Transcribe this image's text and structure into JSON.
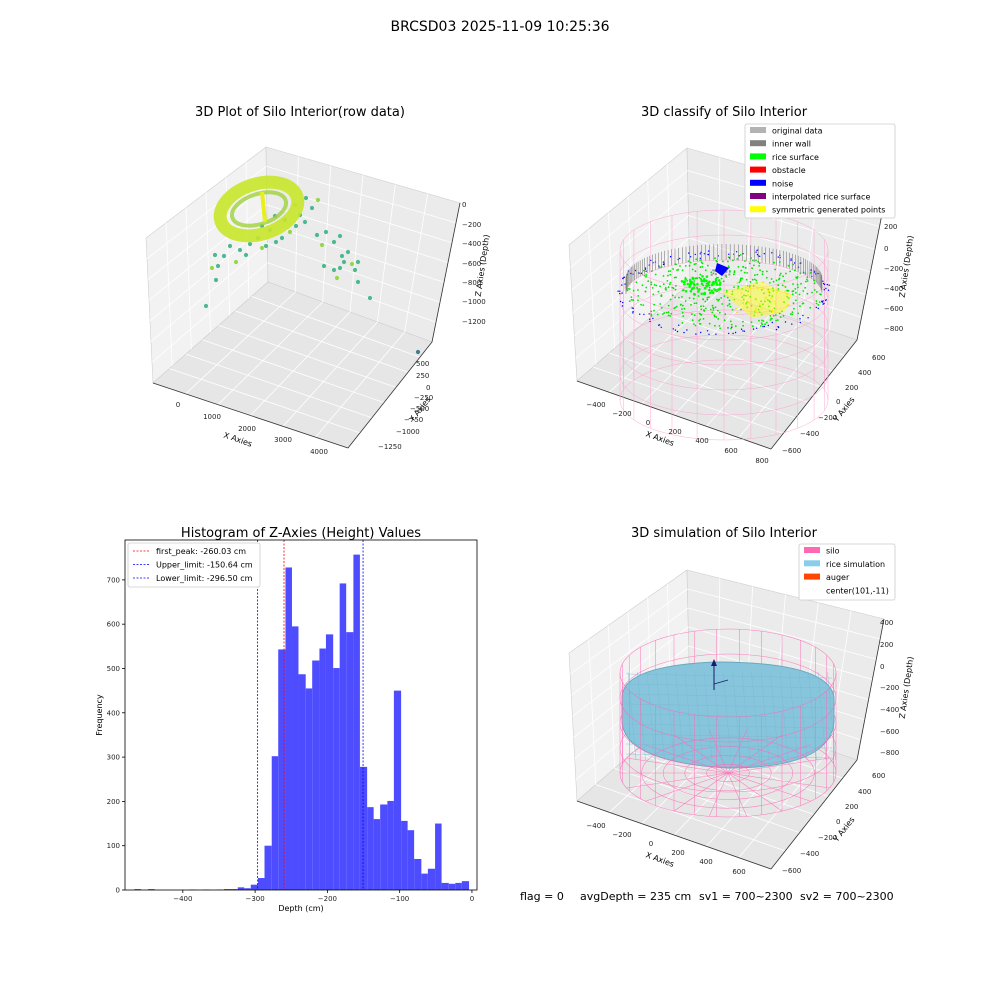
{
  "suptitle": "BRCSD03 2025-11-09 10:25:36",
  "footer": {
    "flag": "flag = 0",
    "avg_depth": "avgDepth = 235 cm",
    "sv1": "sv1 = 700~2300",
    "sv2": "sv2 = 700~2300"
  },
  "chart_data": [
    {
      "type": "scatter",
      "title": "3D Plot of Silo Interior(row data)",
      "xlabel": "X Axies",
      "ylabel": "Y Axies",
      "zlabel": "Z Axies (Depth)",
      "x_ticks": [
        "0",
        "1000",
        "2000",
        "3000",
        "4000"
      ],
      "y_ticks": [
        "500",
        "250",
        "0",
        "−250",
        "−500",
        "−750",
        "−1000",
        "−1250"
      ],
      "z_ticks": [
        "0",
        "−200",
        "−400",
        "−600",
        "−800",
        "−1000",
        "−1200"
      ],
      "colors": {
        "surface": "#b5e61d",
        "scatter": "#4cb98f",
        "outlier": "#3e7f8a"
      }
    },
    {
      "type": "scatter",
      "title": "3D classify of Silo Interior",
      "xlabel": "X Axies",
      "ylabel": "Y Axies",
      "zlabel": "Z Axies (Depth)",
      "x_ticks": [
        "−400",
        "−200",
        "0",
        "200",
        "400",
        "600",
        "800"
      ],
      "y_ticks": [
        "600",
        "400",
        "200",
        "0",
        "−200",
        "−400",
        "−600"
      ],
      "z_ticks": [
        "200",
        "0",
        "−200",
        "−400",
        "−600",
        "−800"
      ],
      "legend": [
        {
          "label": "original data",
          "color": "#b3b3b3"
        },
        {
          "label": "inner wall",
          "color": "#808080"
        },
        {
          "label": "rice surface",
          "color": "#00ff00"
        },
        {
          "label": "obstacle",
          "color": "#ff0000"
        },
        {
          "label": "noise",
          "color": "#0000ff"
        },
        {
          "label": "interpolated rice surface",
          "color": "#800080"
        },
        {
          "label": "symmetric generated points",
          "color": "#ffff00"
        }
      ],
      "legend_position": "top-right"
    },
    {
      "type": "bar",
      "title": "Histogram of Z-Axies (Height) Values",
      "xlabel": "Depth (cm)",
      "ylabel": "Frequency",
      "bar_color": "#4d4dff",
      "xlim": [
        -480,
        7
      ],
      "ylim": [
        0,
        790
      ],
      "x_ticks": [
        -400,
        -300,
        -200,
        -100,
        0
      ],
      "y_ticks": [
        0,
        100,
        200,
        300,
        400,
        500,
        600,
        700
      ],
      "bins": [
        [
          -467,
          -458,
          2
        ],
        [
          -448,
          -439,
          2
        ],
        [
          -391,
          -382,
          1
        ],
        [
          -372,
          -363,
          1
        ],
        [
          -353,
          -344,
          1
        ],
        [
          -343,
          -334,
          2
        ],
        [
          -334,
          -324,
          2
        ],
        [
          -324,
          -315,
          6
        ],
        [
          -315,
          -306,
          4
        ],
        [
          -306,
          -296,
          12
        ],
        [
          -296,
          -287,
          27
        ],
        [
          -287,
          -277,
          100
        ],
        [
          -277,
          -268,
          302
        ],
        [
          -268,
          -258,
          543
        ],
        [
          -258,
          -249,
          728
        ],
        [
          -249,
          -240,
          595
        ],
        [
          -240,
          -230,
          487
        ],
        [
          -230,
          -221,
          455
        ],
        [
          -221,
          -211,
          518
        ],
        [
          -211,
          -202,
          545
        ],
        [
          -202,
          -192,
          577
        ],
        [
          -192,
          -183,
          501
        ],
        [
          -183,
          -174,
          692
        ],
        [
          -174,
          -164,
          582
        ],
        [
          -164,
          -155,
          757
        ],
        [
          -155,
          -145,
          278
        ],
        [
          -145,
          -136,
          187
        ],
        [
          -136,
          -127,
          160
        ],
        [
          -127,
          -117,
          193
        ],
        [
          -117,
          -108,
          201
        ],
        [
          -108,
          -98,
          450
        ],
        [
          -98,
          -89,
          156
        ],
        [
          -89,
          -80,
          135
        ],
        [
          -80,
          -70,
          70
        ],
        [
          -70,
          -61,
          37
        ],
        [
          -61,
          -51,
          48
        ],
        [
          -51,
          -42,
          150
        ],
        [
          -42,
          -32,
          16
        ],
        [
          -32,
          -23,
          14
        ],
        [
          -23,
          -14,
          16
        ],
        [
          -14,
          -4,
          20
        ]
      ],
      "vlines": [
        {
          "label": "first_peak: -260.03 cm",
          "x": -260.03,
          "color": "#ff0000"
        },
        {
          "label": "Upper_limit: -150.64 cm",
          "x": -150.64,
          "color": "#0000ff"
        },
        {
          "label": "Lower_limit: -296.50 cm",
          "x": -296.5,
          "color": "#0000ff"
        }
      ],
      "legend_position": "top-left"
    },
    {
      "type": "scatter",
      "title": "3D simulation of Silo Interior",
      "xlabel": "X Axies",
      "ylabel": "Y Axies",
      "zlabel": "Z Axies (Depth)",
      "x_ticks": [
        "−400",
        "−200",
        "0",
        "200",
        "400",
        "600"
      ],
      "y_ticks": [
        "600",
        "400",
        "200",
        "0",
        "−200",
        "−400",
        "−600"
      ],
      "z_ticks": [
        "400",
        "200",
        "0",
        "−200",
        "−400",
        "−600",
        "−800"
      ],
      "legend": [
        {
          "label": "silo",
          "color": "#ff69b4"
        },
        {
          "label": "rice simulation",
          "color": "#87ceeb"
        },
        {
          "label": "auger",
          "color": "#ff4500"
        },
        {
          "label": "center(101,-11)",
          "color": ""
        }
      ],
      "legend_position": "top-right"
    }
  ]
}
